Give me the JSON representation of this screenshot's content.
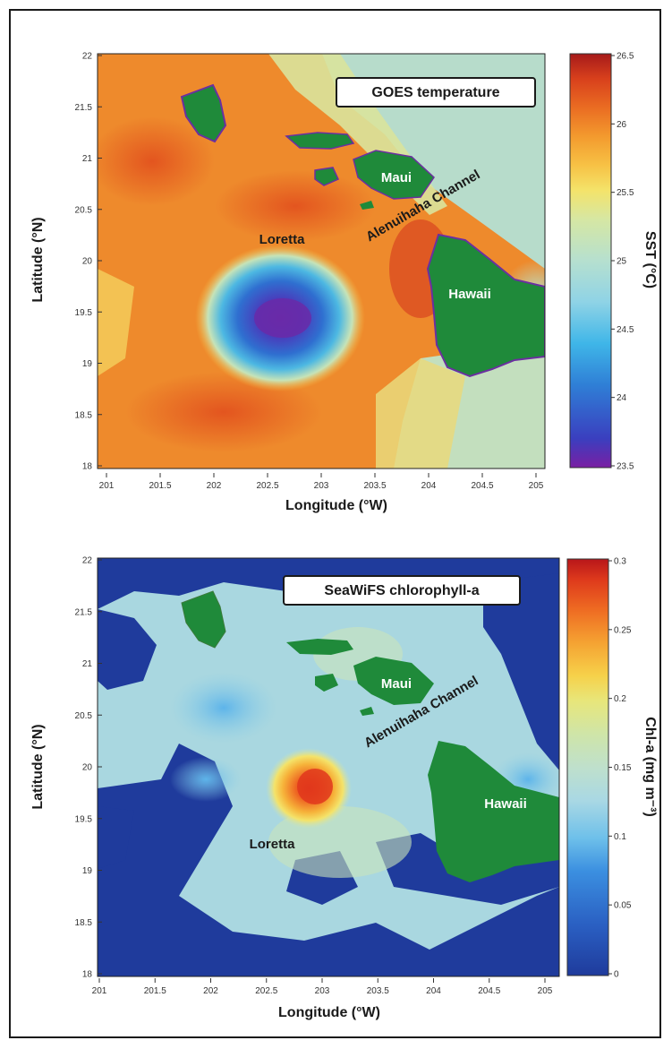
{
  "panels": [
    {
      "title": "GOES temperature",
      "xlabel": "Longitude (°W)",
      "ylabel": "Latitude (°N)",
      "colorbar_label": "SST (°C)",
      "x_ticks": [
        "201",
        "201.5",
        "202",
        "202.5",
        "203",
        "203.5",
        "204",
        "204.5",
        "205"
      ],
      "y_ticks": [
        "22",
        "21.5",
        "21",
        "20.5",
        "20",
        "19.5",
        "19",
        "18.5",
        "18"
      ],
      "colorbar_ticks": [
        "26.5",
        "26",
        "25.5",
        "25",
        "24.5",
        "24",
        "23.5"
      ],
      "colorbar_range": [
        23.5,
        26.5
      ],
      "colorbar_colors": [
        "#7a1fa3",
        "#3a3fbf",
        "#2f7fd6",
        "#3fb6e8",
        "#8fd3e6",
        "#b6e0cf",
        "#d6e7a3",
        "#f4e36a",
        "#f7c245",
        "#f39a2e",
        "#ea6c22",
        "#d8401c",
        "#a61a1a"
      ],
      "labels": {
        "loretta": "Loretta",
        "maui": "Maui",
        "hawaii": "Hawaii",
        "channel": "Alenuihaha Channel"
      }
    },
    {
      "title": "SeaWiFS chlorophyll-a",
      "xlabel": "Longitude (°W)",
      "ylabel": "Latitude (°N)",
      "colorbar_label": "Chl-a (mg m⁻³)",
      "x_ticks": [
        "201",
        "201.5",
        "202",
        "202.5",
        "203",
        "203.5",
        "204",
        "204.5",
        "205"
      ],
      "y_ticks": [
        "22",
        "21.5",
        "21",
        "20.5",
        "20",
        "19.5",
        "19",
        "18.5",
        "18"
      ],
      "colorbar_ticks": [
        "0.3",
        "0.25",
        "0.2",
        "0.15",
        "0.1",
        "0.05",
        "0"
      ],
      "colorbar_range": [
        0,
        0.3
      ],
      "colorbar_colors": [
        "#1f3b9c",
        "#2a5fc2",
        "#3b8fe0",
        "#6ec0ea",
        "#a9d8e4",
        "#bfe0cc",
        "#cfe5a8",
        "#e8e67a",
        "#f6d14a",
        "#f5a232",
        "#ee6a22",
        "#de3a1c",
        "#b8161a"
      ],
      "labels": {
        "loretta": "Loretta",
        "maui": "Maui",
        "hawaii": "Hawaii",
        "channel": "Alenuihaha Channel"
      }
    }
  ]
}
